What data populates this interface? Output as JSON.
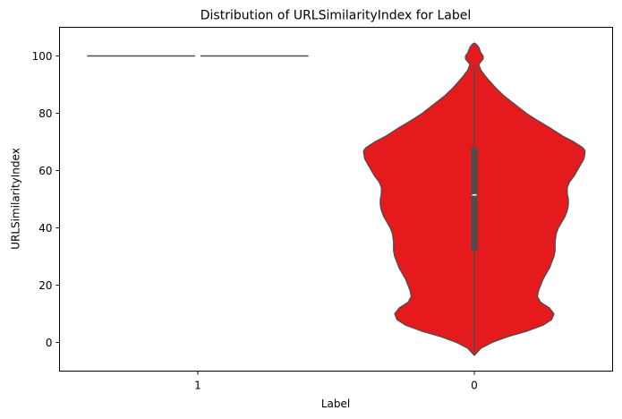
{
  "chart_data": {
    "type": "violin",
    "title": "Distribution of URLSimilarityIndex for Label",
    "xlabel": "Label",
    "ylabel": "URLSimilarityIndex",
    "categories": [
      "1",
      "0"
    ],
    "ylim": [
      -10,
      110
    ],
    "yticks": [
      0,
      20,
      40,
      60,
      80,
      100
    ],
    "grid": false,
    "legend": "none",
    "colors": {
      "violin": "#e41a1c",
      "outline": "#4d4d4d",
      "median": "#ffffff"
    },
    "violins": [
      {
        "category": "1",
        "note_value_constant": 100,
        "profile": [
          [
            99.6,
            1.0
          ],
          [
            100.4,
            1.0
          ]
        ],
        "box": {
          "q1": 100,
          "median": 100,
          "q3": 100,
          "whisker_low": 100,
          "whisker_high": 100
        }
      },
      {
        "category": "0",
        "profile": [
          [
            -4.5,
            0.0
          ],
          [
            -2,
            0.06
          ],
          [
            0,
            0.16
          ],
          [
            2,
            0.3
          ],
          [
            4,
            0.48
          ],
          [
            6,
            0.62
          ],
          [
            8,
            0.7
          ],
          [
            10,
            0.72
          ],
          [
            12,
            0.68
          ],
          [
            14,
            0.6
          ],
          [
            16,
            0.57
          ],
          [
            18,
            0.58
          ],
          [
            20,
            0.6
          ],
          [
            22,
            0.62
          ],
          [
            24,
            0.65
          ],
          [
            26,
            0.68
          ],
          [
            28,
            0.7
          ],
          [
            30,
            0.72
          ],
          [
            32,
            0.73
          ],
          [
            35,
            0.73
          ],
          [
            38,
            0.74
          ],
          [
            40,
            0.76
          ],
          [
            42,
            0.79
          ],
          [
            44,
            0.82
          ],
          [
            46,
            0.84
          ],
          [
            48,
            0.85
          ],
          [
            50,
            0.85
          ],
          [
            52,
            0.84
          ],
          [
            54,
            0.84
          ],
          [
            56,
            0.86
          ],
          [
            58,
            0.9
          ],
          [
            60,
            0.93
          ],
          [
            62,
            0.96
          ],
          [
            64,
            0.99
          ],
          [
            66,
            1.0
          ],
          [
            67,
            1.0
          ],
          [
            68,
            0.98
          ],
          [
            70,
            0.9
          ],
          [
            72,
            0.8
          ],
          [
            75,
            0.68
          ],
          [
            78,
            0.55
          ],
          [
            80,
            0.47
          ],
          [
            83,
            0.37
          ],
          [
            86,
            0.27
          ],
          [
            89,
            0.19
          ],
          [
            92,
            0.12
          ],
          [
            95,
            0.06
          ],
          [
            97,
            0.04
          ],
          [
            98,
            0.06
          ],
          [
            99,
            0.08
          ],
          [
            100,
            0.08
          ],
          [
            101,
            0.06
          ],
          [
            102,
            0.05
          ],
          [
            103,
            0.04
          ],
          [
            104,
            0.02
          ],
          [
            104.5,
            0.0
          ]
        ],
        "box": {
          "q1": 32,
          "median": 51.5,
          "q3": 68,
          "whisker_low": -3,
          "whisker_high": 96
        }
      }
    ]
  }
}
